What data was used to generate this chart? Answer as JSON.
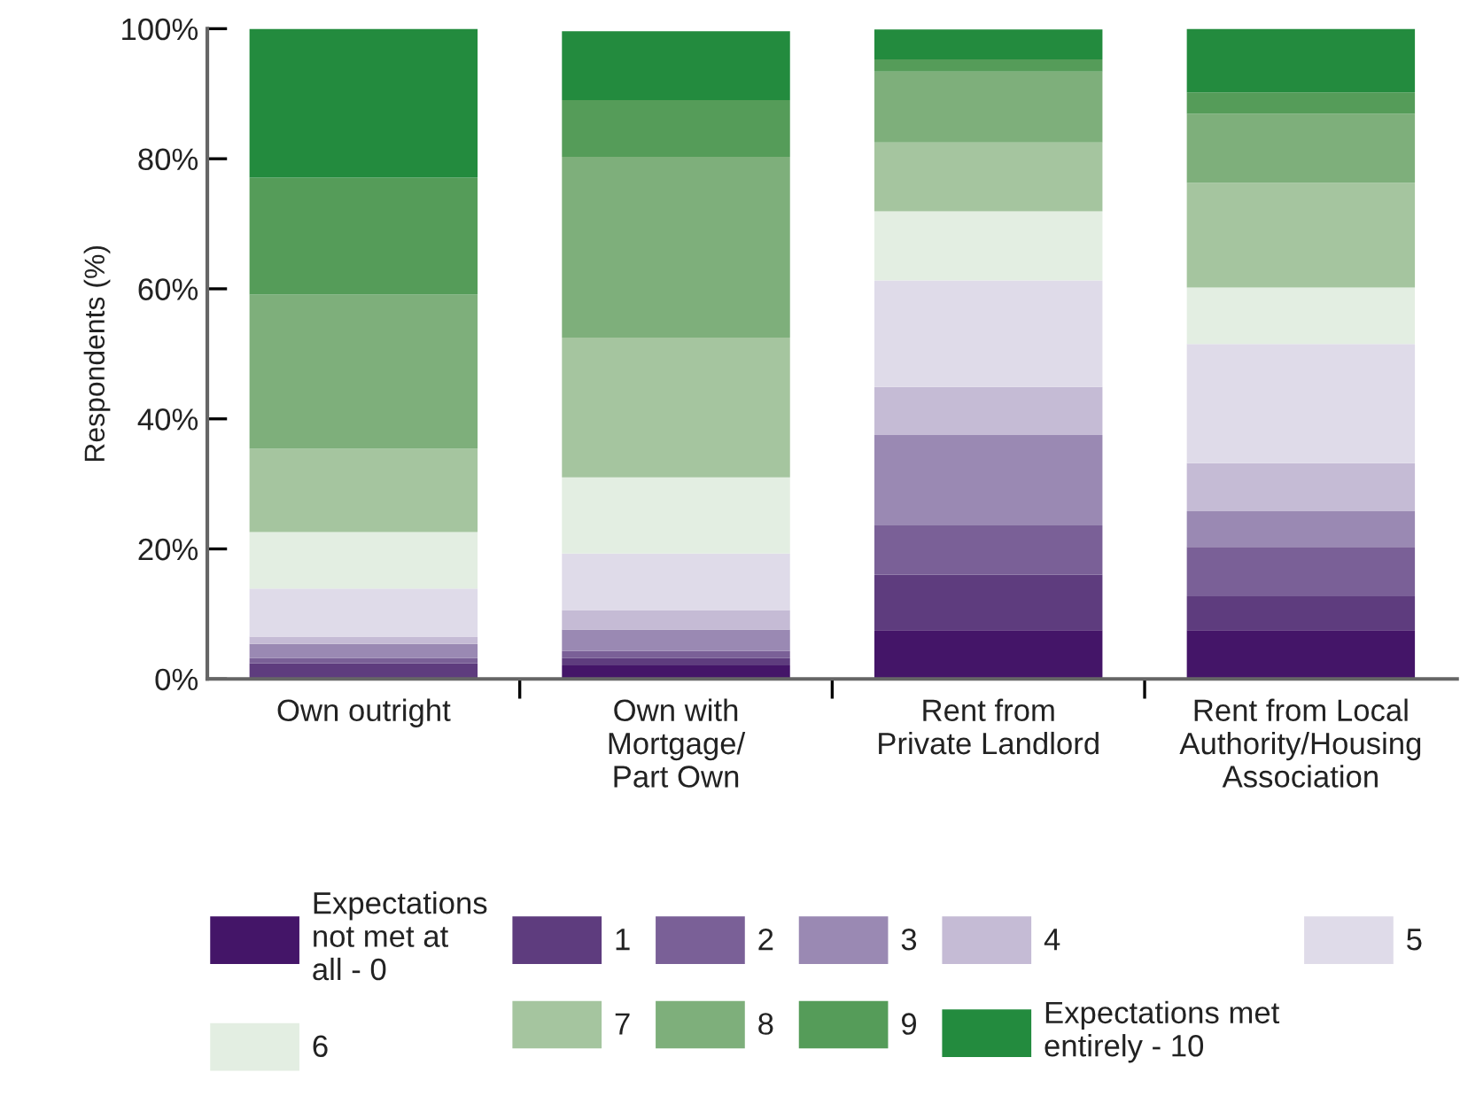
{
  "chart_data": {
    "type": "bar",
    "stacked": true,
    "ylabel": "Respondents (%)",
    "categories": [
      "Own outright",
      "Own with\nMortgage/\nPart Own",
      "Rent from\nPrivate Landlord",
      "Rent from Local\nAuthority/Housing\nAssociation"
    ],
    "ylim": [
      0,
      100
    ],
    "yticks": [
      {
        "value": 0,
        "label": "0%"
      },
      {
        "value": 20,
        "label": "20%"
      },
      {
        "value": 40,
        "label": "40%"
      },
      {
        "value": 60,
        "label": "60%"
      },
      {
        "value": 80,
        "label": "80%"
      },
      {
        "value": 100,
        "label": "100%"
      }
    ],
    "grid": false,
    "legend": "bottom",
    "series": [
      {
        "name": "Expectations\nnot met at\nall - 0",
        "color": "#441568",
        "values": [
          0,
          2.1,
          7.5,
          7.5
        ]
      },
      {
        "name": "1",
        "color": "#5e3c7e",
        "values": [
          2.4,
          1.1,
          8.5,
          5.2
        ]
      },
      {
        "name": "2",
        "color": "#7a6097",
        "values": [
          0.8,
          1.1,
          7.6,
          7.6
        ]
      },
      {
        "name": "3",
        "color": "#9a89b3",
        "values": [
          2.2,
          3.3,
          13.9,
          5.5
        ]
      },
      {
        "name": "4",
        "color": "#c5bbd5",
        "values": [
          1.1,
          3.0,
          7.4,
          7.4
        ]
      },
      {
        "name": "5",
        "color": "#dfdbe9",
        "values": [
          7.4,
          8.7,
          16.4,
          18.3
        ]
      },
      {
        "name": "6",
        "color": "#e3eee2",
        "values": [
          8.7,
          11.7,
          10.6,
          8.7
        ]
      },
      {
        "name": "7",
        "color": "#a5c59f",
        "values": [
          12.8,
          21.5,
          10.6,
          16.1
        ]
      },
      {
        "name": "8",
        "color": "#7eaf7b",
        "values": [
          23.7,
          27.8,
          10.9,
          10.6
        ]
      },
      {
        "name": "9",
        "color": "#559c59",
        "values": [
          18.0,
          8.7,
          1.9,
          3.3
        ]
      },
      {
        "name": "Expectations met\nentirely - 10",
        "color": "#238b3e",
        "values": [
          22.9,
          10.6,
          4.6,
          9.8
        ]
      }
    ]
  }
}
